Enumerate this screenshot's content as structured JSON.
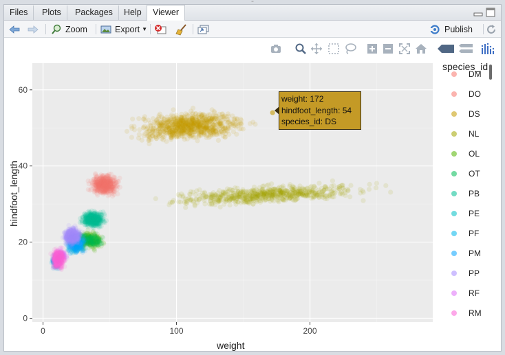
{
  "tabs": [
    {
      "label": "Files"
    },
    {
      "label": "Plots"
    },
    {
      "label": "Packages"
    },
    {
      "label": "Help"
    },
    {
      "label": "Viewer"
    }
  ],
  "active_tab": "Viewer",
  "toolbar": {
    "zoom_label": "Zoom",
    "export_label": "Export",
    "publish_label": "Publish"
  },
  "modebar_icons": [
    "camera-icon",
    "zoom-icon",
    "pan-icon",
    "box-select-icon",
    "lasso-select-icon",
    "zoom-in-icon",
    "zoom-out-icon",
    "autoscale-icon",
    "reset-axes-icon",
    "hover-closest-icon",
    "hover-compare-icon",
    "plotly-logo-icon"
  ],
  "tooltip": {
    "line1": "weight: 172",
    "line2": "hindfoot_length: 54",
    "line3": "species_id: DS"
  },
  "chart_data": {
    "type": "scatter",
    "xlabel": "weight",
    "ylabel": "hindfoot_length",
    "xlim": [
      -8,
      292
    ],
    "ylim": [
      -1,
      67
    ],
    "xticks": [
      0,
      100,
      200
    ],
    "yticks": [
      0,
      20,
      40,
      60
    ],
    "grid": true,
    "legend_title": "species_id",
    "legend_placement": "right",
    "series": [
      {
        "name": "DM",
        "color": "#F8766D",
        "clusters": [
          {
            "x": [
              25,
              60
            ],
            "y": [
              31,
              40
            ],
            "n": 0
          }
        ]
      },
      {
        "name": "DO",
        "color": "#F8766D",
        "clusters": [
          {
            "x": [
              30,
              62
            ],
            "y": [
              31,
              39
            ],
            "n": 420
          }
        ]
      },
      {
        "name": "DS",
        "color": "#C49A00",
        "clusters": [
          {
            "x": [
              50,
              170
            ],
            "y": [
              45,
              56
            ],
            "n": 900
          }
        ]
      },
      {
        "name": "NL",
        "color": "#A3A500",
        "clusters": [
          {
            "x": [
              60,
              275
            ],
            "y": [
              29,
              36
            ],
            "n": 700
          }
        ]
      },
      {
        "name": "OL",
        "color": "#53B400",
        "clusters": [
          {
            "x": [
              20,
              50
            ],
            "y": [
              17,
              24
            ],
            "n": 250
          }
        ]
      },
      {
        "name": "OT",
        "color": "#00BC56",
        "clusters": [
          {
            "x": [
              18,
              50
            ],
            "y": [
              18,
              23
            ],
            "n": 200
          }
        ]
      },
      {
        "name": "PB",
        "color": "#00C094",
        "clusters": [
          {
            "x": [
              25,
              50
            ],
            "y": [
              23,
              29
            ],
            "n": 450
          }
        ]
      },
      {
        "name": "PE",
        "color": "#00BFC4",
        "clusters": [
          {
            "x": [
              15,
              35
            ],
            "y": [
              16,
              23
            ],
            "n": 200
          }
        ]
      },
      {
        "name": "PF",
        "color": "#00B6EB",
        "clusters": [
          {
            "x": [
              5,
              15
            ],
            "y": [
              12,
              18
            ],
            "n": 150
          }
        ]
      },
      {
        "name": "PM",
        "color": "#06A4FF",
        "clusters": [
          {
            "x": [
              15,
              35
            ],
            "y": [
              16,
              23
            ],
            "n": 250
          }
        ]
      },
      {
        "name": "PP",
        "color": "#A58AFF",
        "clusters": [
          {
            "x": [
              12,
              32
            ],
            "y": [
              18,
              25
            ],
            "n": 400
          }
        ]
      },
      {
        "name": "RF",
        "color": "#DF70F8",
        "clusters": [
          {
            "x": [
              8,
              20
            ],
            "y": [
              14,
              19
            ],
            "n": 100
          }
        ]
      },
      {
        "name": "RM",
        "color": "#FB61D7",
        "clusters": [
          {
            "x": [
              5,
              18
            ],
            "y": [
              12,
              19
            ],
            "n": 400
          }
        ]
      }
    ],
    "highlight_point": {
      "x": 172,
      "y": 54,
      "series": "DS"
    }
  }
}
